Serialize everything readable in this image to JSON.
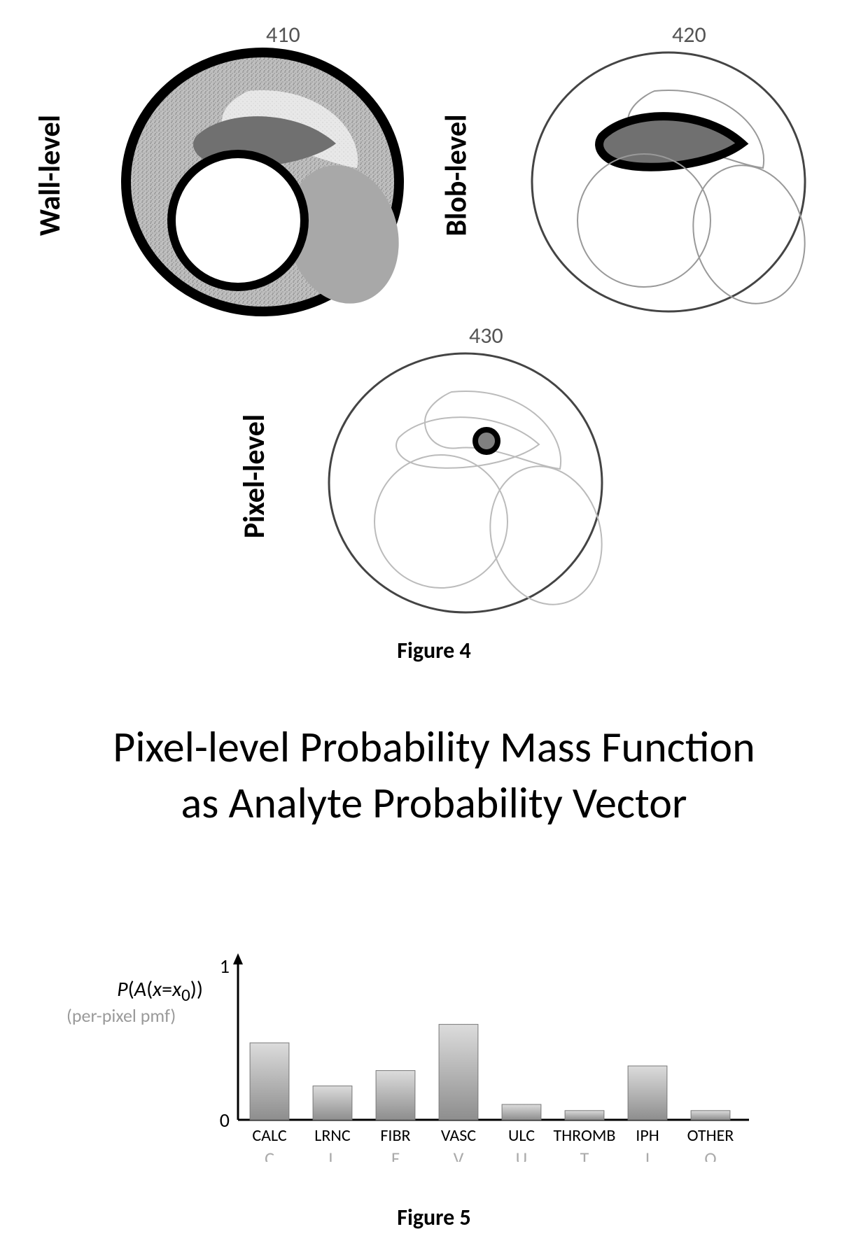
{
  "figure4": {
    "panels": {
      "wall": {
        "label": "Wall-level",
        "number": "410"
      },
      "blob": {
        "label": "Blob-level",
        "number": "420"
      },
      "pixel": {
        "label": "Pixel-level",
        "number": "430"
      }
    },
    "caption": "Figure 4",
    "colors": {
      "outline": "#000000",
      "wall_fill": "#bfbfbf",
      "wall_speckle": "#9f9f9f",
      "lumen": "#ffffff",
      "blob_a_fill": "#7a7a7a",
      "blob_b_fill": "#e8e8e8",
      "blob_c_fill": "#a8a8a8",
      "thin_outline": "#808080",
      "pixel_dot_fill": "#808080",
      "pixel_dot_ring": "#000000"
    }
  },
  "figure5": {
    "title_line1": "Pixel-level Probability Mass Function",
    "title_line2": "as Analyte Probability Vector",
    "y_axis_label_html": "P(A(x=x₀))",
    "y_axis_sub": "(per-pixel pmf)",
    "caption": "Figure 5",
    "chart": {
      "type": "bar",
      "ylim": [
        0,
        1
      ],
      "yticks": [
        0,
        1
      ],
      "categories": [
        "CALC",
        "LRNC",
        "FIBR",
        "VASC",
        "ULC",
        "THROMB",
        "IPH",
        "OTHER"
      ],
      "sub_categories": [
        "C",
        "L",
        "F",
        "V",
        "U",
        "T",
        "I",
        "O"
      ],
      "values": [
        0.5,
        0.22,
        0.32,
        0.62,
        0.1,
        0.06,
        0.35,
        0.06
      ],
      "bar_width": 0.62,
      "bar_fill_top": "#dcdcdc",
      "bar_fill_bottom": "#8e8e8e",
      "bar_stroke": "#787878",
      "axis_color": "#000000",
      "background": "#ffffff",
      "label_fontsize": 24,
      "sublabel_fontsize": 26,
      "sublabel_color": "#aaaaaa",
      "ytick_fontsize": 28
    }
  }
}
